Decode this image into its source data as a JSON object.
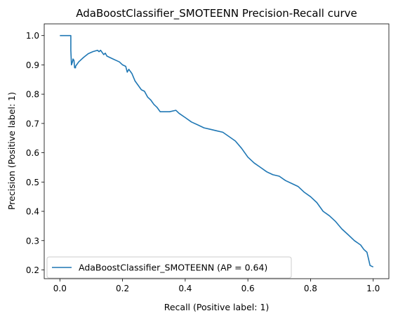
{
  "chart_data": {
    "type": "line",
    "title": "AdaBoostClassifier_SMOTEENN Precision-Recall curve",
    "xlabel": "Recall (Positive label: 1)",
    "ylabel": "Precision (Positive label: 1)",
    "xlim": [
      -0.05,
      1.05
    ],
    "ylim": [
      0.17,
      1.04
    ],
    "xticks": [
      0.0,
      0.2,
      0.4,
      0.6,
      0.8,
      1.0
    ],
    "xtick_labels": [
      "0.0",
      "0.2",
      "0.4",
      "0.6",
      "0.8",
      "1.0"
    ],
    "yticks": [
      0.2,
      0.3,
      0.4,
      0.5,
      0.6,
      0.7,
      0.8,
      0.9,
      1.0
    ],
    "ytick_labels": [
      "0.2",
      "0.3",
      "0.4",
      "0.5",
      "0.6",
      "0.7",
      "0.8",
      "0.9",
      "1.0"
    ],
    "grid": false,
    "legend_position": "lower-left",
    "series": [
      {
        "name": "AdaBoostClassifier_SMOTEENN (AP = 0.64)",
        "color": "#1f77b4",
        "x": [
          0.0,
          0.035,
          0.035,
          0.037,
          0.04,
          0.042,
          0.045,
          0.047,
          0.05,
          0.05,
          0.06,
          0.075,
          0.09,
          0.105,
          0.12,
          0.125,
          0.13,
          0.14,
          0.145,
          0.15,
          0.16,
          0.17,
          0.18,
          0.19,
          0.2,
          0.21,
          0.215,
          0.22,
          0.23,
          0.24,
          0.25,
          0.26,
          0.27,
          0.28,
          0.29,
          0.3,
          0.31,
          0.32,
          0.33,
          0.35,
          0.37,
          0.38,
          0.4,
          0.42,
          0.44,
          0.46,
          0.48,
          0.5,
          0.52,
          0.54,
          0.56,
          0.58,
          0.6,
          0.62,
          0.64,
          0.66,
          0.68,
          0.7,
          0.72,
          0.74,
          0.76,
          0.78,
          0.8,
          0.82,
          0.84,
          0.86,
          0.88,
          0.9,
          0.92,
          0.94,
          0.96,
          0.97,
          0.98,
          0.99,
          1.0
        ],
        "y": [
          1.0,
          1.0,
          0.95,
          0.9,
          0.91,
          0.92,
          0.915,
          0.89,
          0.89,
          0.895,
          0.91,
          0.925,
          0.938,
          0.945,
          0.95,
          0.945,
          0.95,
          0.935,
          0.94,
          0.93,
          0.925,
          0.92,
          0.915,
          0.91,
          0.9,
          0.895,
          0.875,
          0.885,
          0.87,
          0.845,
          0.83,
          0.815,
          0.81,
          0.79,
          0.78,
          0.765,
          0.755,
          0.74,
          0.74,
          0.74,
          0.745,
          0.735,
          0.72,
          0.705,
          0.695,
          0.685,
          0.68,
          0.675,
          0.67,
          0.655,
          0.64,
          0.615,
          0.585,
          0.565,
          0.55,
          0.535,
          0.525,
          0.52,
          0.505,
          0.495,
          0.485,
          0.465,
          0.45,
          0.43,
          0.4,
          0.385,
          0.365,
          0.34,
          0.32,
          0.3,
          0.285,
          0.27,
          0.26,
          0.215,
          0.21
        ]
      }
    ]
  }
}
